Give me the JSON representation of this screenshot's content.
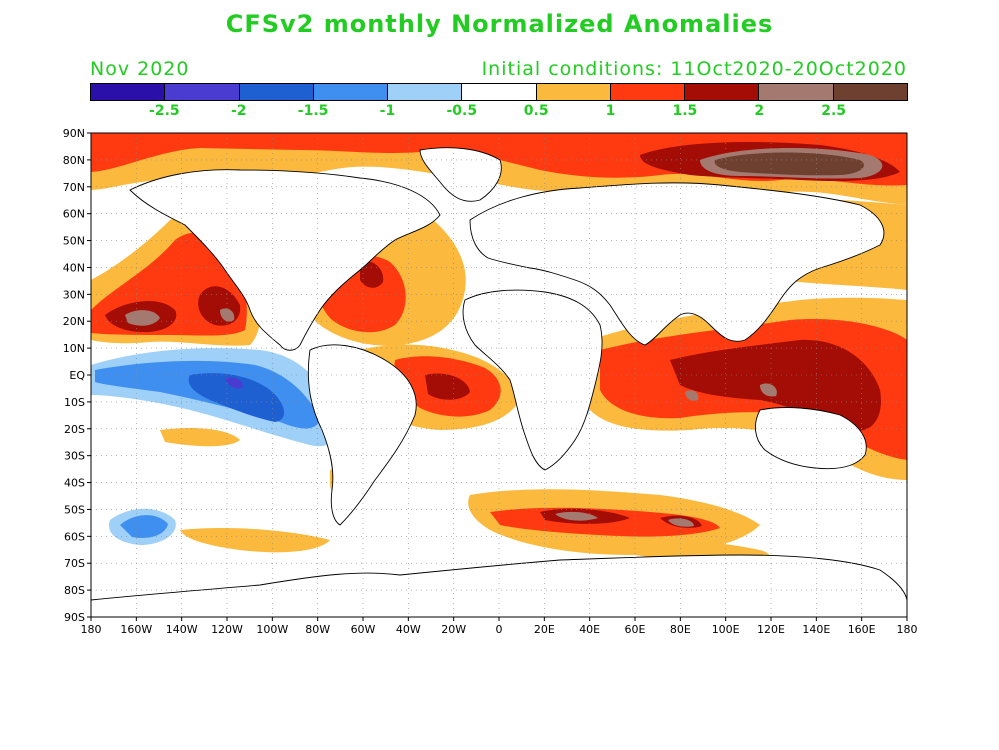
{
  "title": "CFSv2 monthly Normalized Anomalies",
  "month": "Nov 2020",
  "initial_conditions": "Initial conditions: 11Oct2020-20Oct2020",
  "colorbar": {
    "colors": [
      "#2a10a8",
      "#4a3cd0",
      "#1e5fd2",
      "#3f8ff0",
      "#9ed0f8",
      "#ffffff",
      "#fbb93e",
      "#ff3a10",
      "#a40c06",
      "#a47a70",
      "#6e4030"
    ],
    "labels": [
      "-2.5",
      "-2",
      "-1.5",
      "-1",
      "-0.5",
      "0.5",
      "1",
      "1.5",
      "2",
      "2.5"
    ]
  },
  "axes": {
    "lat_labels": [
      "90N",
      "80N",
      "70N",
      "60N",
      "50N",
      "40N",
      "30N",
      "20N",
      "10N",
      "EQ",
      "10S",
      "20S",
      "30S",
      "40S",
      "50S",
      "60S",
      "70S",
      "80S",
      "90S"
    ],
    "lon_labels": [
      "180",
      "160W",
      "140W",
      "120W",
      "100W",
      "80W",
      "60W",
      "40W",
      "20W",
      "0",
      "20E",
      "40E",
      "60E",
      "80E",
      "100E",
      "120E",
      "140E",
      "160E",
      "180"
    ]
  }
}
